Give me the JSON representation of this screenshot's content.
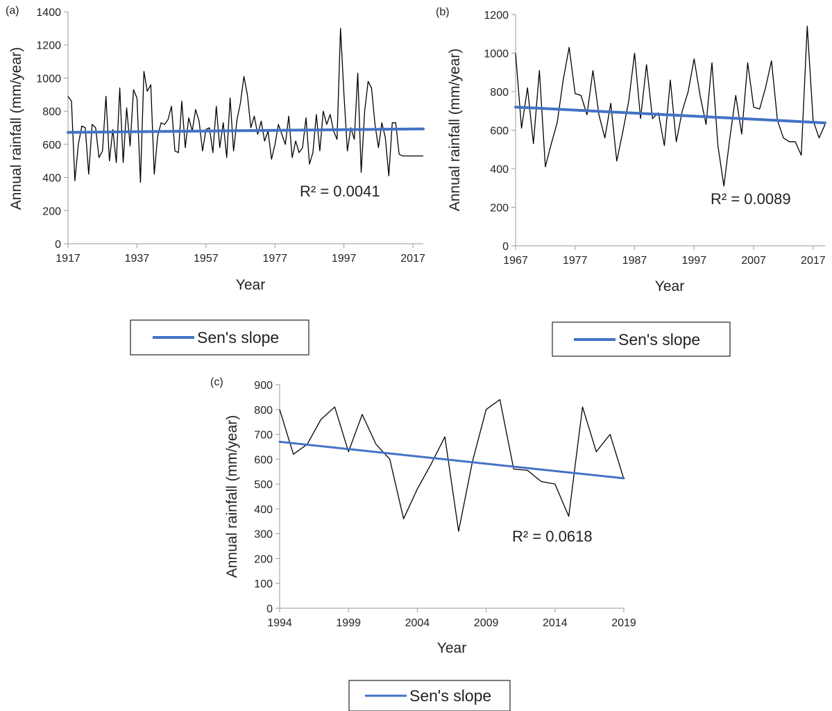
{
  "colors": {
    "trend": "#4472C4",
    "series": "#000000",
    "axis": "#9a9a9a",
    "text": "#222222"
  },
  "chart_data": [
    {
      "panel_label": "(a)",
      "type": "line",
      "xlabel": "Year",
      "ylabel": "Annual rainfall (mm/year)",
      "xlim": [
        1917,
        2020
      ],
      "ylim": [
        0,
        1400
      ],
      "xticks": [
        1917,
        1937,
        1957,
        1977,
        1997,
        2017
      ],
      "yticks": [
        0,
        200,
        400,
        600,
        800,
        1000,
        1200,
        1400
      ],
      "grid": false,
      "r2_label": "R² = 0.0041",
      "legend": {
        "label": "Sen's slope",
        "position": "bottom"
      },
      "series": [
        {
          "x": [
            1917,
            1918,
            1919,
            1920,
            1921,
            1922,
            1923,
            1924,
            1925,
            1926,
            1927,
            1928,
            1929,
            1930,
            1931,
            1932,
            1933,
            1934,
            1935,
            1936,
            1937,
            1938,
            1939,
            1940,
            1941,
            1942,
            1943,
            1944,
            1945,
            1946,
            1947,
            1948,
            1949,
            1950,
            1951,
            1952,
            1953,
            1954,
            1955,
            1956,
            1957,
            1958,
            1959,
            1960,
            1961,
            1962,
            1963,
            1964,
            1965,
            1966,
            1967,
            1968,
            1969,
            1970,
            1971,
            1972,
            1973,
            1974,
            1975,
            1976,
            1977,
            1978,
            1979,
            1980,
            1981,
            1982,
            1983,
            1984,
            1985,
            1986,
            1987,
            1988,
            1989,
            1990,
            1991,
            1992,
            1993,
            1994,
            1995,
            1996,
            1997,
            1998,
            1999,
            2000,
            2001,
            2002,
            2003,
            2004,
            2005,
            2006,
            2007,
            2008,
            2009,
            2010,
            2011,
            2012,
            2013,
            2014,
            2015,
            2016,
            2017,
            2018,
            2019,
            2020
          ],
          "y": [
            890,
            860,
            380,
            600,
            710,
            700,
            420,
            720,
            700,
            520,
            560,
            890,
            500,
            690,
            490,
            940,
            490,
            820,
            590,
            930,
            880,
            370,
            1040,
            920,
            960,
            420,
            650,
            730,
            720,
            750,
            830,
            560,
            550,
            860,
            580,
            760,
            680,
            810,
            740,
            560,
            690,
            700,
            550,
            830,
            580,
            730,
            520,
            880,
            560,
            750,
            850,
            1010,
            900,
            700,
            770,
            660,
            740,
            620,
            680,
            510,
            600,
            720,
            660,
            600,
            770,
            520,
            620,
            550,
            580,
            760,
            480,
            550,
            780,
            560,
            800,
            720,
            780,
            680,
            630,
            1300,
            900,
            560,
            700,
            630,
            1030,
            430,
            800,
            980,
            940,
            720,
            580,
            730,
            640,
            410,
            730,
            730,
            540,
            530,
            530,
            530,
            530,
            530,
            530,
            530
          ],
          "color": "#000000"
        },
        {
          "name": "Sen's slope",
          "x": [
            1917,
            2020
          ],
          "y": [
            672,
            693
          ],
          "color": "#4472C4"
        }
      ]
    },
    {
      "panel_label": "(b)",
      "type": "line",
      "xlabel": "Year",
      "ylabel": "Annual rainfall (mm/year)",
      "xlim": [
        1967,
        2019
      ],
      "ylim": [
        0,
        1200
      ],
      "xticks": [
        1967,
        1977,
        1987,
        1997,
        2007,
        2017
      ],
      "yticks": [
        0,
        200,
        400,
        600,
        800,
        1000,
        1200
      ],
      "grid": false,
      "r2_label": "R² = 0.0089",
      "legend": {
        "label": "Sen's slope",
        "position": "bottom"
      },
      "series": [
        {
          "x": [
            1967,
            1968,
            1969,
            1970,
            1971,
            1972,
            1973,
            1974,
            1975,
            1976,
            1977,
            1978,
            1979,
            1980,
            1981,
            1982,
            1983,
            1984,
            1985,
            1986,
            1987,
            1988,
            1989,
            1990,
            1991,
            1992,
            1993,
            1994,
            1995,
            1996,
            1997,
            1998,
            1999,
            2000,
            2001,
            2002,
            2003,
            2004,
            2005,
            2006,
            2007,
            2008,
            2009,
            2010,
            2011,
            2012,
            2013,
            2014,
            2015,
            2016,
            2017,
            2018,
            2019
          ],
          "y": [
            1000,
            610,
            820,
            530,
            910,
            410,
            530,
            640,
            860,
            1030,
            790,
            780,
            680,
            910,
            680,
            560,
            740,
            440,
            590,
            750,
            1000,
            660,
            940,
            660,
            690,
            520,
            860,
            540,
            700,
            800,
            970,
            780,
            630,
            950,
            520,
            310,
            560,
            780,
            580,
            950,
            720,
            710,
            820,
            960,
            650,
            560,
            540,
            540,
            470,
            1140,
            650,
            560,
            630
          ],
          "color": "#000000"
        },
        {
          "name": "Sen's slope",
          "x": [
            1967,
            2019
          ],
          "y": [
            720,
            638
          ],
          "color": "#4472C4"
        }
      ]
    },
    {
      "panel_label": "(c)",
      "type": "line",
      "xlabel": "Year",
      "ylabel": "Annual rainfall (mm/year)",
      "xlim": [
        1994,
        2019
      ],
      "ylim": [
        0,
        900
      ],
      "xticks": [
        1994,
        1999,
        2004,
        2009,
        2014,
        2019
      ],
      "yticks": [
        0,
        100,
        200,
        300,
        400,
        500,
        600,
        700,
        800,
        900
      ],
      "grid": false,
      "r2_label": "R² = 0.0618",
      "legend": {
        "label": "Sen's slope",
        "position": "bottom"
      },
      "series": [
        {
          "x": [
            1994,
            1995,
            1996,
            1997,
            1998,
            1999,
            2000,
            2001,
            2002,
            2003,
            2004,
            2005,
            2006,
            2007,
            2008,
            2009,
            2010,
            2011,
            2012,
            2013,
            2014,
            2015,
            2016,
            2017,
            2018,
            2019
          ],
          "y": [
            800,
            620,
            660,
            760,
            810,
            630,
            780,
            660,
            600,
            360,
            480,
            580,
            690,
            310,
            590,
            800,
            840,
            560,
            555,
            510,
            500,
            370,
            810,
            630,
            700,
            520
          ],
          "color": "#000000"
        },
        {
          "name": "Sen's slope",
          "x": [
            1994,
            2019
          ],
          "y": [
            670,
            523
          ],
          "color": "#4472C4"
        }
      ]
    }
  ]
}
